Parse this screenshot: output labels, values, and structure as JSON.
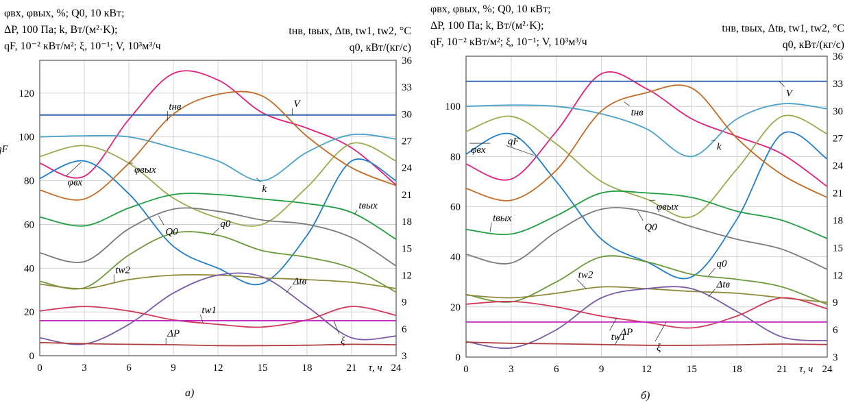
{
  "figure": {
    "left_caption": "а)",
    "right_caption": "б)"
  },
  "headers": {
    "left_line1": "φвх, φвых, %; Q0, 10 кВт;",
    "left_line2": "ΔP, 100 Па; k, Вт/(м²·K);",
    "left_line3": "qF, 10⁻² кВт/м²; ξ, 10⁻¹; V, 10³м³/ч",
    "right_line1": "tнв, tвых, Δtв, tw1, tw2, °C",
    "right_line2": "q0, кВт/(кг/с)",
    "xlabel": "τ, ч"
  },
  "chart_data": [
    {
      "type": "line",
      "caption": "а)",
      "x": [
        0,
        3,
        6,
        9,
        12,
        15,
        18,
        21,
        24
      ],
      "xticks": [
        "0",
        "3",
        "6",
        "9",
        "12",
        "15",
        "18",
        "21",
        "24"
      ],
      "xlabel": "τ, ч",
      "xlim": [
        0,
        24
      ],
      "ylim_left": [
        0,
        135
      ],
      "yticks_left": [
        "0",
        "20",
        "40",
        "60",
        "80",
        "100",
        "120"
      ],
      "ylim_right": [
        3,
        36
      ],
      "yticks_right": [
        "3",
        "6",
        "9",
        "12",
        "15",
        "18",
        "21",
        "24",
        "27",
        "30",
        "33",
        "36"
      ],
      "grid": true,
      "series": [
        {
          "name": "qF",
          "axis": "left",
          "color": "#e0207c",
          "values": [
            88,
            82,
            108,
            129,
            126,
            111,
            104,
            95,
            78
          ]
        },
        {
          "name": "V",
          "axis": "left",
          "color": "#2a5ea8",
          "values": [
            110,
            110,
            110,
            110,
            110,
            110,
            110,
            110,
            110
          ]
        },
        {
          "name": "k",
          "axis": "left",
          "color": "#4aa3c7",
          "values": [
            100,
            100.5,
            100,
            95,
            89,
            80,
            93,
            101,
            99
          ]
        },
        {
          "name": "φвых",
          "axis": "left",
          "color": "#9caa4e",
          "values": [
            91,
            96,
            88,
            72,
            63,
            60,
            77,
            97,
            89
          ]
        },
        {
          "name": "φвх",
          "axis": "left",
          "color": "#1e7ecc",
          "values": [
            81,
            89,
            74,
            50,
            40,
            33,
            55,
            89,
            80
          ]
        },
        {
          "name": "tнв",
          "axis": "right",
          "color": "#c46b26",
          "values": [
            21.5,
            20.5,
            24.5,
            30,
            32.2,
            32,
            27.5,
            24,
            22
          ]
        },
        {
          "name": "Q0",
          "axis": "left",
          "color": "#7a7a7a",
          "values": [
            47,
            43,
            58,
            67,
            66,
            62,
            60,
            54,
            41
          ]
        },
        {
          "name": "tвых",
          "axis": "right",
          "color": "#1f9e3f",
          "values": [
            18.5,
            17.5,
            19.5,
            21,
            21,
            20.5,
            20,
            19,
            16
          ]
        },
        {
          "name": "q0",
          "axis": "left",
          "color": "#6c9a3a",
          "values": [
            34,
            31,
            46,
            56,
            55,
            48,
            45,
            40,
            29
          ]
        },
        {
          "name": "tw2",
          "axis": "right",
          "color": "#8f8a3a",
          "values": [
            11,
            10.5,
            11.5,
            12,
            12,
            11.7,
            11.5,
            11.2,
            10.5
          ]
        },
        {
          "name": "Δtв",
          "axis": "right",
          "color": "#7b5aa6",
          "values": [
            5,
            4.3,
            6.5,
            10,
            12,
            11.8,
            8.5,
            5,
            5.2
          ]
        },
        {
          "name": "tw1",
          "axis": "right",
          "color": "#d23a5a",
          "values": [
            8,
            8.5,
            8,
            7,
            6.5,
            6.2,
            7,
            8.5,
            7.5
          ]
        },
        {
          "name": "ξ",
          "axis": "left",
          "color": "#c026c0",
          "values": [
            16,
            16,
            16,
            16,
            16,
            16,
            16,
            16,
            16
          ]
        },
        {
          "name": "ΔP",
          "axis": "left",
          "color": "#b04040",
          "values": [
            6,
            5.5,
            5.2,
            5,
            4.6,
            4.6,
            4.8,
            5.2,
            5
          ]
        }
      ]
    },
    {
      "type": "line",
      "caption": "б)",
      "x": [
        0,
        3,
        6,
        9,
        12,
        15,
        18,
        21,
        24
      ],
      "xticks": [
        "0",
        "3",
        "6",
        "9",
        "12",
        "15",
        "18",
        "21",
        "24"
      ],
      "xlabel": "τ, ч",
      "xlim": [
        0,
        24
      ],
      "ylim_left": [
        0,
        120
      ],
      "yticks_left": [
        "0",
        "20",
        "40",
        "60",
        "80",
        "100"
      ],
      "ylim_right": [
        3,
        36
      ],
      "yticks_right": [
        "3",
        "6",
        "9",
        "12",
        "15",
        "18",
        "21",
        "24",
        "27",
        "30",
        "33",
        "36"
      ],
      "grid": true,
      "series": [
        {
          "name": "qF",
          "axis": "left",
          "color": "#e0207c",
          "values": [
            77,
            71,
            90,
            113,
            107,
            95,
            88,
            81,
            68
          ]
        },
        {
          "name": "V",
          "axis": "left",
          "color": "#2a5ea8",
          "values": [
            110,
            110,
            110,
            110,
            110,
            110,
            110,
            110,
            110
          ]
        },
        {
          "name": "k",
          "axis": "left",
          "color": "#4aa3c7",
          "values": [
            100,
            100.5,
            100,
            97,
            91,
            80,
            95,
            101,
            99
          ]
        },
        {
          "name": "φвых",
          "axis": "left",
          "color": "#9caa4e",
          "values": [
            90,
            96,
            85,
            70,
            63,
            56,
            75,
            96,
            89
          ]
        },
        {
          "name": "φвх",
          "axis": "left",
          "color": "#1e7ecc",
          "values": [
            81,
            89,
            70,
            47,
            38,
            32,
            55,
            89,
            79
          ]
        },
        {
          "name": "tнв",
          "axis": "right",
          "color": "#c46b26",
          "values": [
            21.5,
            20.2,
            23.5,
            30,
            32,
            32.5,
            27,
            23,
            20.5
          ]
        },
        {
          "name": "Q0",
          "axis": "left",
          "color": "#7a7a7a",
          "values": [
            41,
            37.5,
            50,
            59,
            58,
            52,
            47,
            43,
            35
          ]
        },
        {
          "name": "tвых",
          "axis": "right",
          "color": "#1f9e3f",
          "values": [
            17,
            16.5,
            18.5,
            21,
            21,
            20.5,
            19,
            18,
            16
          ]
        },
        {
          "name": "q0",
          "axis": "left",
          "color": "#6c9a3a",
          "values": [
            25,
            22,
            30,
            40,
            38,
            33,
            31,
            28,
            21
          ]
        },
        {
          "name": "tw2",
          "axis": "right",
          "color": "#8f8a3a",
          "values": [
            9.8,
            9.5,
            10,
            10.7,
            10.5,
            10.2,
            10,
            9.5,
            9
          ]
        },
        {
          "name": "Δtв",
          "axis": "right",
          "color": "#7b5aa6",
          "values": [
            4.7,
            4,
            6,
            9.5,
            10.5,
            10.5,
            8,
            5.2,
            4.8
          ]
        },
        {
          "name": "tw1",
          "axis": "right",
          "color": "#d23a5a",
          "values": [
            8.8,
            9.1,
            8.5,
            7.5,
            6.8,
            6.2,
            7.5,
            9.5,
            8.3
          ]
        },
        {
          "name": "ξ",
          "axis": "left",
          "color": "#c026c0",
          "values": [
            14,
            14,
            14,
            14,
            14,
            14,
            14,
            14,
            14
          ]
        },
        {
          "name": "ΔP",
          "axis": "left",
          "color": "#b04040",
          "values": [
            6,
            5.5,
            5.3,
            5,
            4.7,
            4.7,
            4.9,
            5.2,
            5
          ]
        }
      ]
    }
  ]
}
